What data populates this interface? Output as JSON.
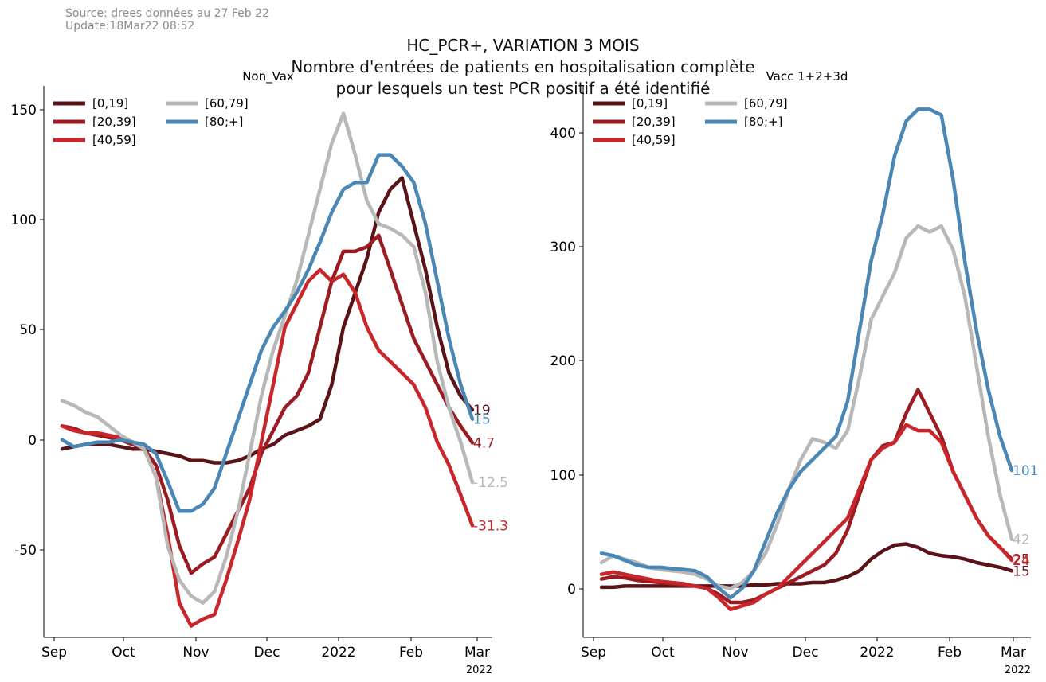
{
  "source_line1": "Source: drees données au 27 Feb 22",
  "source_line2": "Update:18Mar22 08:52",
  "suptitle": [
    "HC_PCR+, VARIATION 3 MOIS",
    "Nombre d'entrées de patients en hospitalisation complète",
    "pour lesquels un test PCR positif a été identifié"
  ],
  "colors": {
    "[0,19]": "#5a1418",
    "[20,39]": "#9a1c22",
    "[40,59]": "#c8262a",
    "[60,79]": "#b8b8b8",
    "[80;+]": "#4a87b5"
  },
  "chart_data": [
    {
      "type": "line",
      "title": "Non_Vax",
      "xlabel": "",
      "ylabel": "",
      "x_ticks": [
        "Sep",
        "Oct",
        "Nov",
        "Dec",
        "2022",
        "Feb",
        "Mar"
      ],
      "x_sublabel": "2022",
      "y_ticks": [
        "150",
        "100",
        "50",
        "0",
        "-50"
      ],
      "ylim": [
        -80,
        160
      ],
      "legend": [
        "[0,19]",
        "[20,39]",
        "[40,59]",
        "[60,79]",
        "[80;+]"
      ],
      "legend_position": "top-left",
      "x_days": [
        0,
        5,
        10,
        15,
        20,
        25,
        30,
        35,
        40,
        45,
        50,
        55,
        60,
        65,
        70,
        75,
        80,
        85,
        90,
        95,
        100,
        105,
        110,
        115,
        120,
        125,
        130,
        135,
        140,
        145,
        150,
        155,
        160,
        165,
        170,
        175
      ],
      "series": [
        {
          "name": "[0,19]",
          "values": [
            2,
            3,
            4,
            4,
            4,
            3,
            2,
            2,
            1,
            0,
            -1,
            -3,
            -3,
            -4,
            -4,
            -3,
            -1,
            2,
            4,
            8,
            10,
            12,
            15,
            30,
            55,
            70,
            85,
            105,
            115,
            120,
            100,
            80,
            55,
            35,
            25,
            19
          ],
          "end_label": "19"
        },
        {
          "name": "[20,39]",
          "values": [
            12,
            11,
            9,
            8,
            7,
            6,
            4,
            2,
            -5,
            -20,
            -40,
            -52,
            -48,
            -45,
            -35,
            -25,
            -15,
            0,
            10,
            20,
            25,
            35,
            55,
            75,
            88,
            88,
            90,
            95,
            80,
            65,
            50,
            40,
            30,
            20,
            12,
            4.7
          ],
          "end_label": "4.7"
        },
        {
          "name": "[40,59]",
          "values": [
            12,
            10,
            9,
            9,
            8,
            7,
            5,
            2,
            -10,
            -35,
            -65,
            -75,
            -72,
            -70,
            -55,
            -38,
            -20,
            5,
            30,
            55,
            65,
            75,
            80,
            75,
            78,
            70,
            55,
            45,
            40,
            35,
            30,
            20,
            5,
            -5,
            -18,
            -31.3
          ],
          "end_label": "-31.3"
        },
        {
          "name": "[60,79]",
          "values": [
            23,
            21,
            18,
            16,
            12,
            8,
            5,
            2,
            -10,
            -40,
            -55,
            -62,
            -65,
            -60,
            -45,
            -25,
            0,
            25,
            45,
            60,
            75,
            95,
            115,
            135,
            148,
            130,
            110,
            100,
            98,
            95,
            90,
            70,
            40,
            20,
            5,
            -12.5
          ],
          "end_label": "-12.5"
        },
        {
          "name": "[80;+]",
          "values": [
            6,
            3,
            4,
            5,
            5,
            6,
            5,
            4,
            0,
            -12,
            -25,
            -25,
            -22,
            -15,
            0,
            15,
            30,
            45,
            55,
            62,
            70,
            80,
            92,
            105,
            115,
            118,
            118,
            130,
            130,
            125,
            118,
            100,
            75,
            50,
            30,
            15
          ],
          "end_label": "15"
        }
      ]
    },
    {
      "type": "line",
      "title": "Vacc 1+2+3d",
      "xlabel": "",
      "ylabel": "",
      "x_ticks": [
        "Sep",
        "Oct",
        "Nov",
        "Dec",
        "2022",
        "Feb",
        "Mar"
      ],
      "x_sublabel": "2022",
      "y_ticks": [
        "400",
        "300",
        "200",
        "100",
        "0"
      ],
      "ylim": [
        -42,
        430
      ],
      "legend": [
        "[0,19]",
        "[20,39]",
        "[40,59]",
        "[60,79]",
        "[80;+]"
      ],
      "legend_position": "top-left",
      "x_days": [
        0,
        5,
        10,
        15,
        20,
        25,
        30,
        35,
        40,
        45,
        50,
        55,
        60,
        65,
        70,
        75,
        80,
        85,
        90,
        95,
        100,
        105,
        110,
        115,
        120,
        125,
        130,
        135,
        140,
        145,
        150,
        155,
        160,
        165,
        170,
        175
      ],
      "series": [
        {
          "name": "[0,19]",
          "values": [
            1,
            1,
            2,
            2,
            2,
            2,
            2,
            2,
            2,
            2,
            2,
            2,
            2,
            3,
            3,
            4,
            4,
            4,
            5,
            5,
            7,
            10,
            15,
            25,
            32,
            37,
            38,
            35,
            30,
            28,
            27,
            25,
            22,
            20,
            18,
            15
          ],
          "end_label": "15"
        },
        {
          "name": "[20,39]",
          "values": [
            8,
            10,
            9,
            7,
            6,
            5,
            4,
            3,
            2,
            0,
            -5,
            -12,
            -12,
            -10,
            -5,
            0,
            5,
            10,
            15,
            20,
            30,
            50,
            80,
            110,
            122,
            125,
            150,
            170,
            150,
            130,
            100,
            80,
            60,
            45,
            35,
            25
          ],
          "end_label": "25"
        },
        {
          "name": "[40,59]",
          "values": [
            12,
            14,
            12,
            10,
            8,
            6,
            5,
            4,
            2,
            0,
            -8,
            -18,
            -15,
            -12,
            -5,
            0,
            10,
            20,
            30,
            40,
            50,
            60,
            85,
            110,
            120,
            125,
            140,
            135,
            135,
            125,
            100,
            80,
            60,
            45,
            35,
            24
          ],
          "end_label": "24"
        },
        {
          "name": "[60,79]",
          "values": [
            22,
            28,
            25,
            22,
            18,
            16,
            15,
            14,
            12,
            8,
            2,
            0,
            5,
            15,
            30,
            55,
            85,
            110,
            128,
            125,
            120,
            135,
            180,
            230,
            250,
            270,
            300,
            310,
            305,
            310,
            290,
            250,
            190,
            130,
            80,
            42
          ],
          "end_label": "42"
        },
        {
          "name": "[80;+]",
          "values": [
            30,
            28,
            24,
            20,
            18,
            18,
            17,
            16,
            15,
            10,
            0,
            -8,
            0,
            15,
            40,
            65,
            85,
            100,
            110,
            120,
            130,
            160,
            220,
            280,
            320,
            370,
            400,
            410,
            410,
            405,
            350,
            280,
            220,
            170,
            130,
            101
          ],
          "end_label": "101"
        }
      ]
    }
  ]
}
